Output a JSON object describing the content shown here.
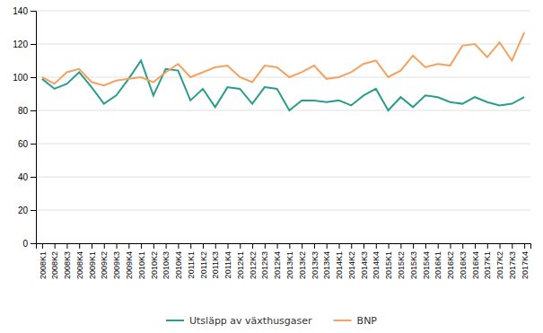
{
  "chart_data": {
    "type": "line",
    "categories": [
      "2008K1",
      "2008K2",
      "2008K3",
      "2008K4",
      "2009K1",
      "2009K2",
      "2009K3",
      "2009K4",
      "2010K1",
      "2010K2",
      "2010K3",
      "2010K4",
      "2011K1",
      "2011K2",
      "2011K3",
      "2011K4",
      "2012K1",
      "2012K2",
      "2012K3",
      "2012K4",
      "2013K1",
      "2013K2",
      "2013K3",
      "2013K4",
      "2014K1",
      "2014K2",
      "2014K3",
      "2014K4",
      "2015K1",
      "2015K2",
      "2015K3",
      "2015K4",
      "2016K1",
      "2016K2",
      "2016K3",
      "2016K4",
      "2017K1",
      "2017K2",
      "2017K3",
      "2017K4"
    ],
    "series": [
      {
        "name": "Utsläpp av växthusgaser",
        "color": "#2A9D8F",
        "values": [
          99,
          93,
          96,
          103,
          94,
          84,
          89,
          99,
          110,
          89,
          105,
          104,
          86,
          93,
          82,
          94,
          93,
          84,
          94,
          93,
          80,
          86,
          86,
          85,
          86,
          83,
          89,
          93,
          80,
          88,
          82,
          89,
          88,
          85,
          84,
          88,
          85,
          83,
          84,
          88
        ]
      },
      {
        "name": "BNP",
        "color": "#F4A261",
        "values": [
          100,
          96,
          103,
          105,
          97,
          95,
          98,
          99,
          100,
          97,
          103,
          108,
          100,
          103,
          106,
          107,
          100,
          97,
          107,
          106,
          100,
          103,
          107,
          99,
          100,
          103,
          108,
          110,
          100,
          104,
          113,
          106,
          108,
          107,
          119,
          120,
          112,
          121,
          110,
          127
        ]
      }
    ],
    "ylim": [
      0,
      140
    ],
    "yticks": [
      0,
      20,
      40,
      60,
      80,
      100,
      120,
      140
    ],
    "grid": true,
    "legend": "bottom"
  }
}
